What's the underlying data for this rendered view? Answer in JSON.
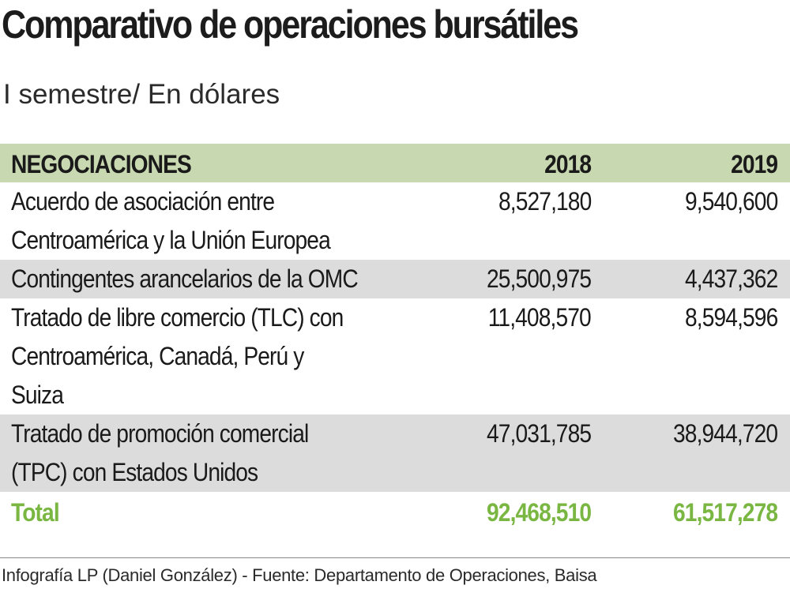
{
  "title": "Comparativo de operaciones bursátiles",
  "subtitle": "I semestre/ En dólares",
  "chart_data": {
    "type": "table",
    "title": "Comparativo de operaciones bursátiles",
    "subtitle": "I semestre/ En dólares",
    "columns": [
      "NEGOCIACIONES",
      "2018",
      "2019"
    ],
    "rows": [
      {
        "label": "Acuerdo de asociación entre Centroamérica y la Unión Europea",
        "v2018": "8,527,180",
        "v2019": "9,540,600"
      },
      {
        "label": "Contingentes arancelarios de la OMC",
        "v2018": "25,500,975",
        "v2019": "4,437,362"
      },
      {
        "label": "Tratado de libre comercio (TLC) con Centroamérica, Canadá, Perú y Suiza",
        "v2018": "11,408,570",
        "v2019": "8,594,596"
      },
      {
        "label": "Tratado de promoción comercial (TPC) con Estados Unidos",
        "v2018": "47,031,785",
        "v2019": "38,944,720"
      }
    ],
    "total": {
      "label": "Total",
      "v2018": "92,468,510",
      "v2019": "61,517,278"
    },
    "colors": {
      "header_bg": "#c8d8b0",
      "shaded_row": "#dcdcdc",
      "total_text": "#7ab642"
    }
  },
  "footer": "Infografía LP (Daniel González) - Fuente: Departamento de Operaciones, Baisa"
}
